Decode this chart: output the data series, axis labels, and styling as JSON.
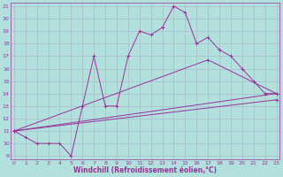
{
  "xlabel": "Windchill (Refroidissement éolien,°C)",
  "bg_color": "#b2e0dd",
  "grid_color": "#aabbcc",
  "line_color": "#993399",
  "x_min": 0,
  "x_max": 23,
  "y_min": 9,
  "y_max": 21,
  "series": [
    {
      "x": [
        0,
        1,
        2,
        3,
        4,
        5,
        6,
        7,
        8,
        9,
        10,
        11,
        12,
        13,
        14,
        15,
        16,
        17,
        18,
        19,
        20,
        21,
        22,
        23
      ],
      "y": [
        11,
        10.5,
        10,
        10,
        10,
        9,
        13,
        17,
        13,
        13,
        17,
        19,
        18.7,
        19.3,
        21,
        20.5,
        18,
        18.5,
        17.5,
        17,
        16,
        15,
        14,
        14
      ]
    },
    {
      "x": [
        0,
        23
      ],
      "y": [
        11,
        14
      ]
    },
    {
      "x": [
        0,
        23
      ],
      "y": [
        11,
        13.5
      ]
    },
    {
      "x": [
        0,
        17,
        23
      ],
      "y": [
        11,
        16.7,
        14
      ]
    }
  ]
}
